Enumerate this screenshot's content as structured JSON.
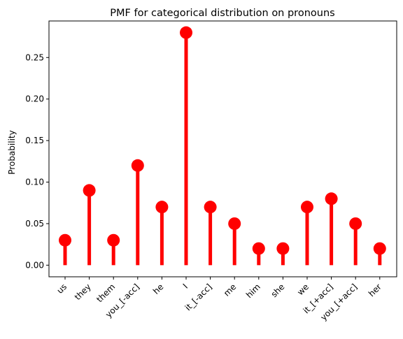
{
  "chart_data": {
    "type": "stem",
    "title": "PMF for categorical distribution on pronouns",
    "xlabel": "",
    "ylabel": "Probability",
    "categories": [
      "us",
      "they",
      "them",
      "you_[-acc]",
      "he",
      "I",
      "it_[-acc]",
      "me",
      "him",
      "she",
      "we",
      "it_[+acc]",
      "you_[+acc]",
      "her"
    ],
    "values": [
      0.03,
      0.09,
      0.03,
      0.12,
      0.07,
      0.28,
      0.07,
      0.05,
      0.02,
      0.02,
      0.07,
      0.08,
      0.05,
      0.02
    ],
    "yticks": [
      0.0,
      0.05,
      0.1,
      0.15,
      0.2,
      0.25
    ],
    "ylim": [
      -0.014,
      0.294
    ],
    "grid": false,
    "color": "#ff0000"
  }
}
